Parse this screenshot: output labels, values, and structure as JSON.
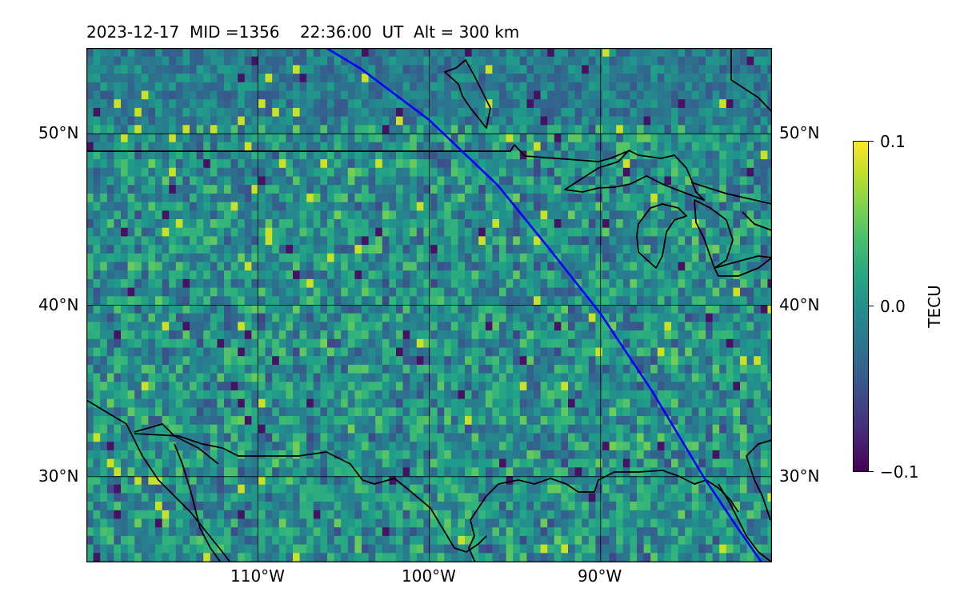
{
  "title": "2023-12-17  MID =1356    22:36:00  UT  Alt = 300 km",
  "map": {
    "lat_range": [
      25,
      55
    ],
    "lon_range": [
      -120,
      -80
    ],
    "lat_ticks": [
      {
        "value": 50,
        "label": "50°N"
      },
      {
        "value": 40,
        "label": "40°N"
      },
      {
        "value": 30,
        "label": "30°N"
      }
    ],
    "lon_ticks": [
      {
        "value": -110,
        "label": "110°W"
      },
      {
        "value": -100,
        "label": "100°W"
      },
      {
        "value": -90,
        "label": "90°W"
      }
    ],
    "grid": true,
    "field_colormap": "viridis",
    "field_range": [
      -0.1,
      0.1
    ],
    "track": {
      "color": "#0000ff",
      "points": [
        [
          -106.0,
          55.0
        ],
        [
          -104.0,
          53.8
        ],
        [
          -100.0,
          50.8
        ],
        [
          -96.0,
          47.0
        ],
        [
          -93.0,
          43.3
        ],
        [
          -90.0,
          39.5
        ],
        [
          -87.0,
          35.0
        ],
        [
          -84.0,
          30.0
        ],
        [
          -82.0,
          27.0
        ],
        [
          -80.6,
          25.0
        ]
      ]
    },
    "boundary_color": "#000000"
  },
  "colorbar": {
    "label": "TECU",
    "ticks": [
      {
        "value": 0.1,
        "label": "0.1"
      },
      {
        "value": 0.0,
        "label": "0.0"
      },
      {
        "value": -0.1,
        "label": "−0.1"
      }
    ]
  }
}
